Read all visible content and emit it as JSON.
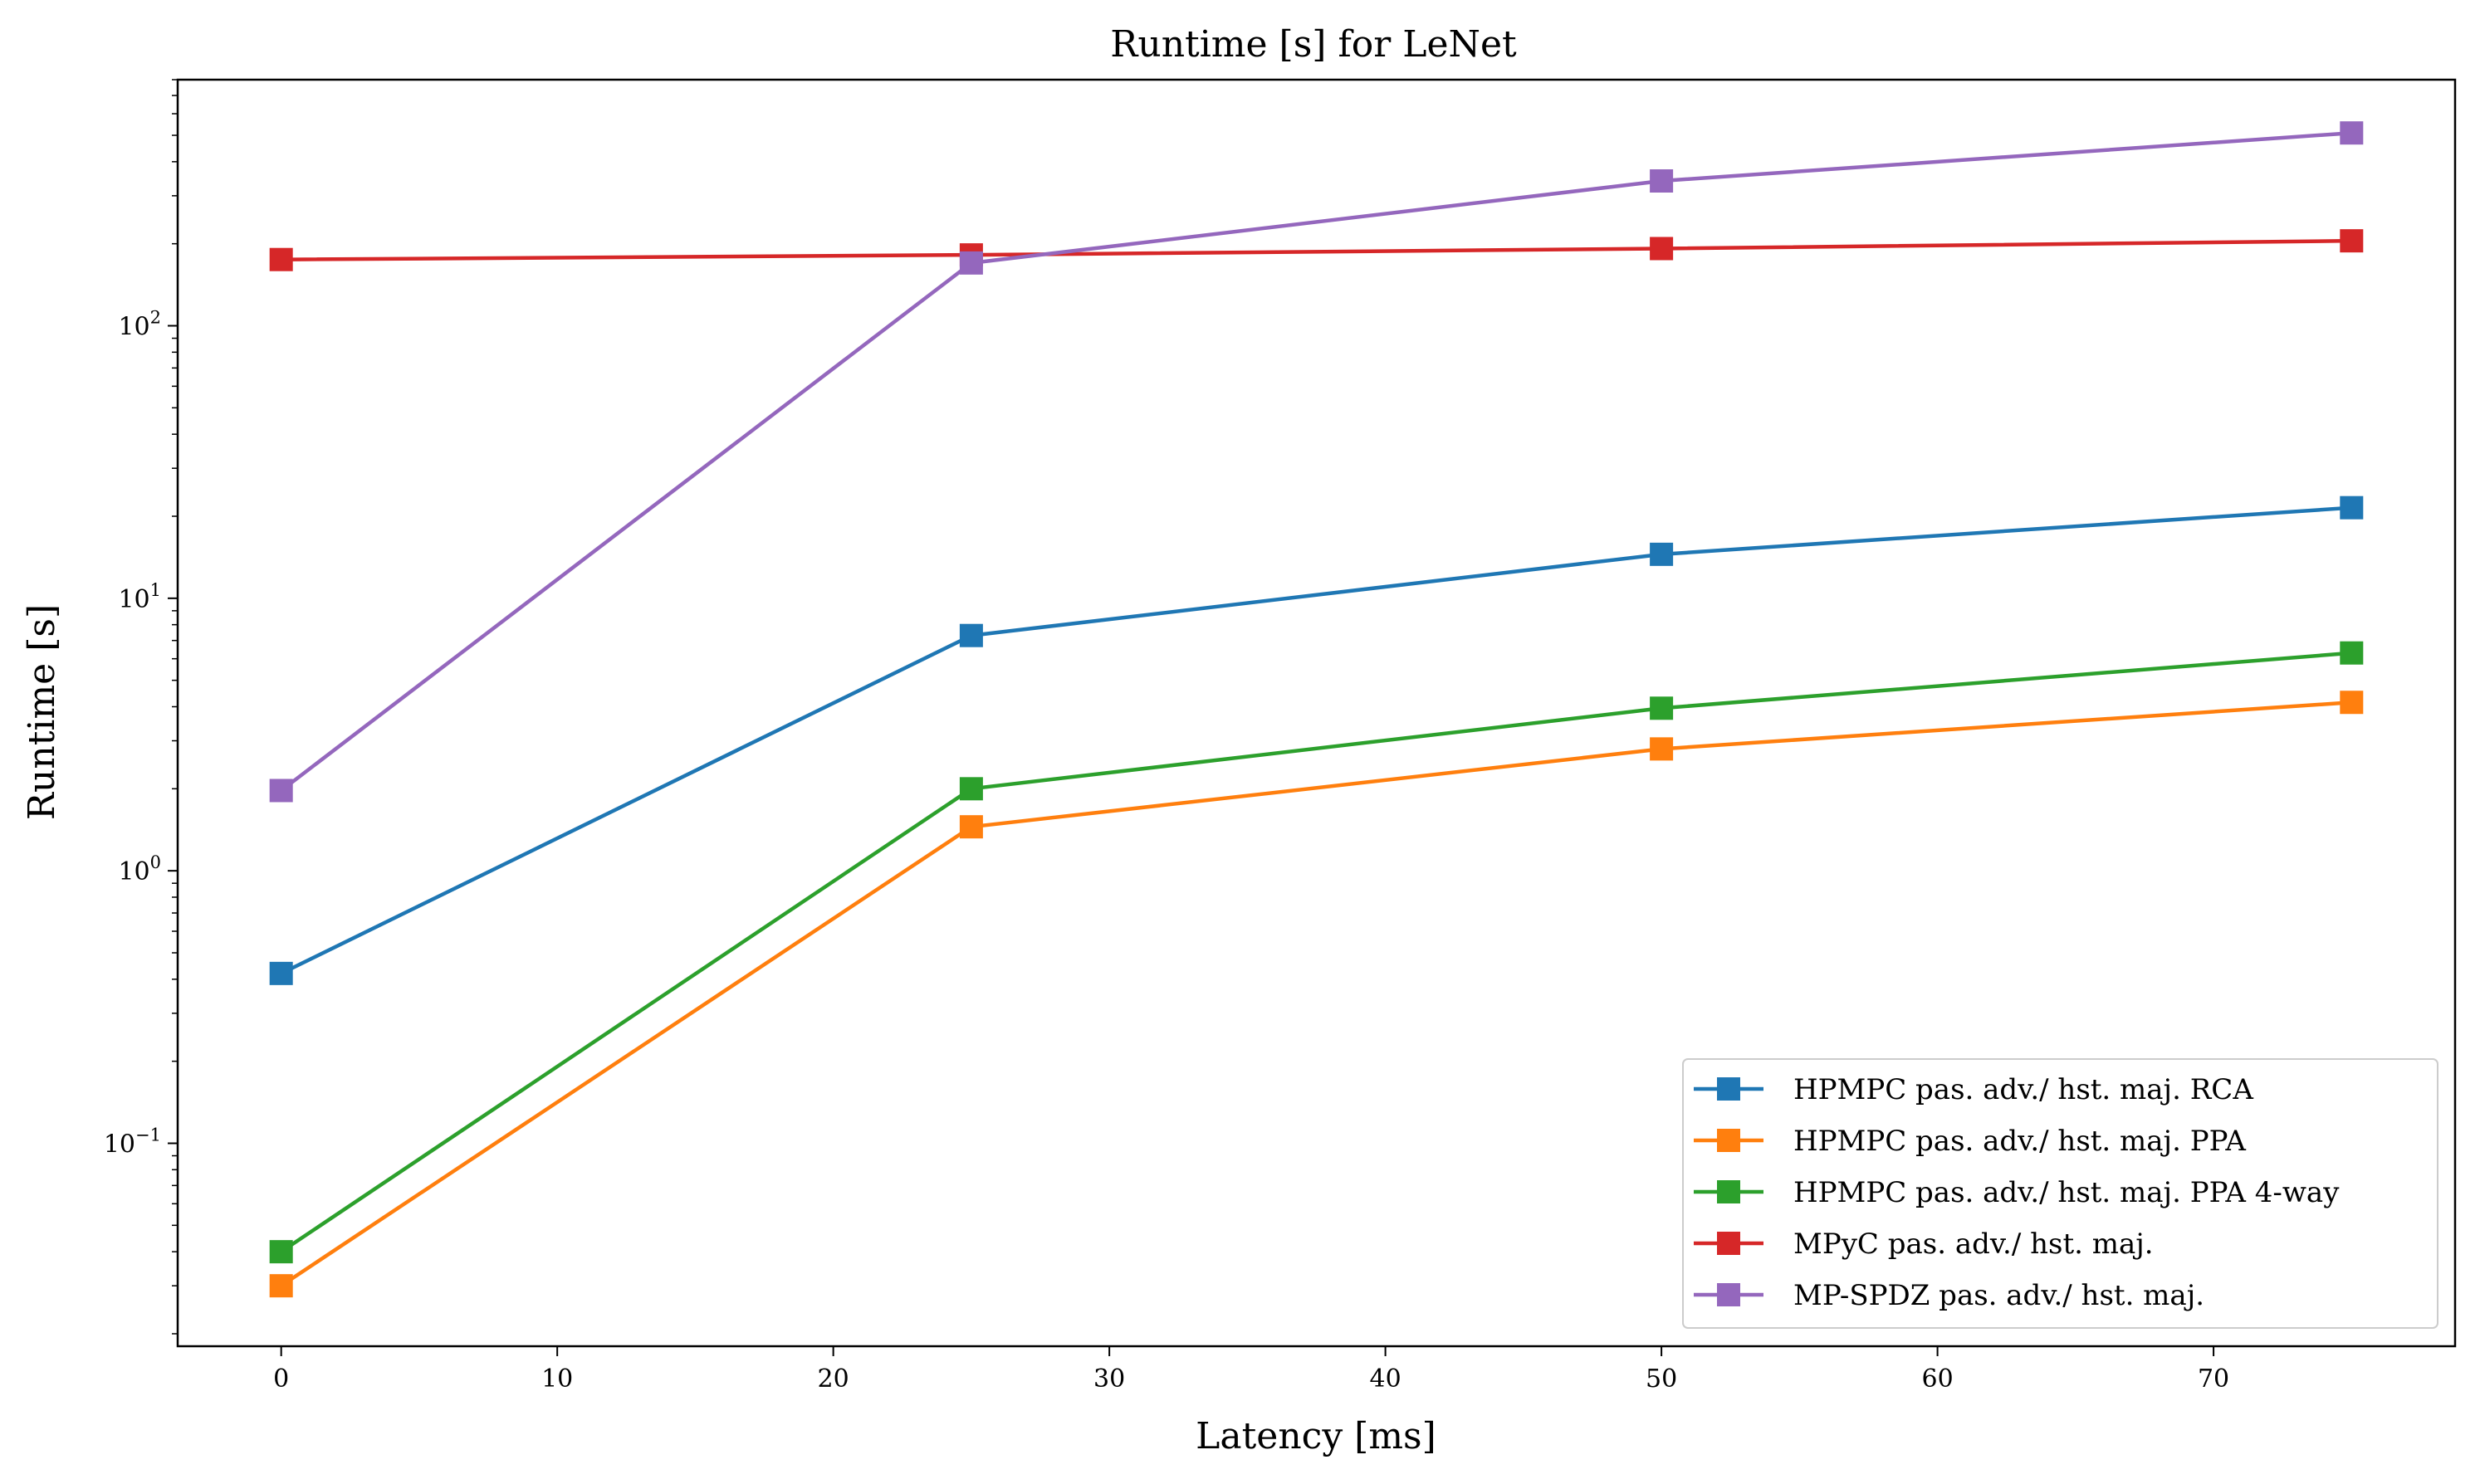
{
  "chart_data": {
    "type": "line",
    "title": "Runtime [s] for LeNet",
    "xlabel": "Latency [ms]",
    "ylabel": "Runtime [s]",
    "xlim": [
      -3.75,
      78.75
    ],
    "ylim": [
      0.018,
      800
    ],
    "yscale": "log",
    "x_ticks": [
      0,
      10,
      20,
      30,
      40,
      50,
      60,
      70
    ],
    "y_ticks": [
      {
        "value": 0.1,
        "base": "10",
        "exp": "−1"
      },
      {
        "value": 1,
        "base": "10",
        "exp": "0"
      },
      {
        "value": 10,
        "base": "10",
        "exp": "1"
      },
      {
        "value": 100,
        "base": "10",
        "exp": "2"
      }
    ],
    "grid": false,
    "legend_position": "lower-right",
    "x": [
      0,
      25,
      50,
      75
    ],
    "series": [
      {
        "name": "HPMPC pas. adv./ hst. maj. RCA",
        "color": "#1f77b4",
        "marker": "square",
        "values": [
          0.42,
          7.3,
          14.5,
          21.5
        ]
      },
      {
        "name": "HPMPC pas. adv./ hst. maj. PPA",
        "color": "#ff7f0e",
        "marker": "square",
        "values": [
          0.03,
          1.45,
          2.8,
          4.15
        ]
      },
      {
        "name": "HPMPC pas. adv./ hst. maj. PPA 4-way",
        "color": "#2ca02c",
        "marker": "square",
        "values": [
          0.04,
          2.0,
          3.95,
          6.3
        ]
      },
      {
        "name": "MPyC pas. adv./ hst. maj.",
        "color": "#d62728",
        "marker": "square",
        "values": [
          175,
          182,
          192,
          205
        ]
      },
      {
        "name": "MP-SPDZ pas. adv./ hst. maj.",
        "color": "#9467bd",
        "marker": "square",
        "values": [
          1.97,
          170,
          340,
          510
        ]
      }
    ]
  }
}
